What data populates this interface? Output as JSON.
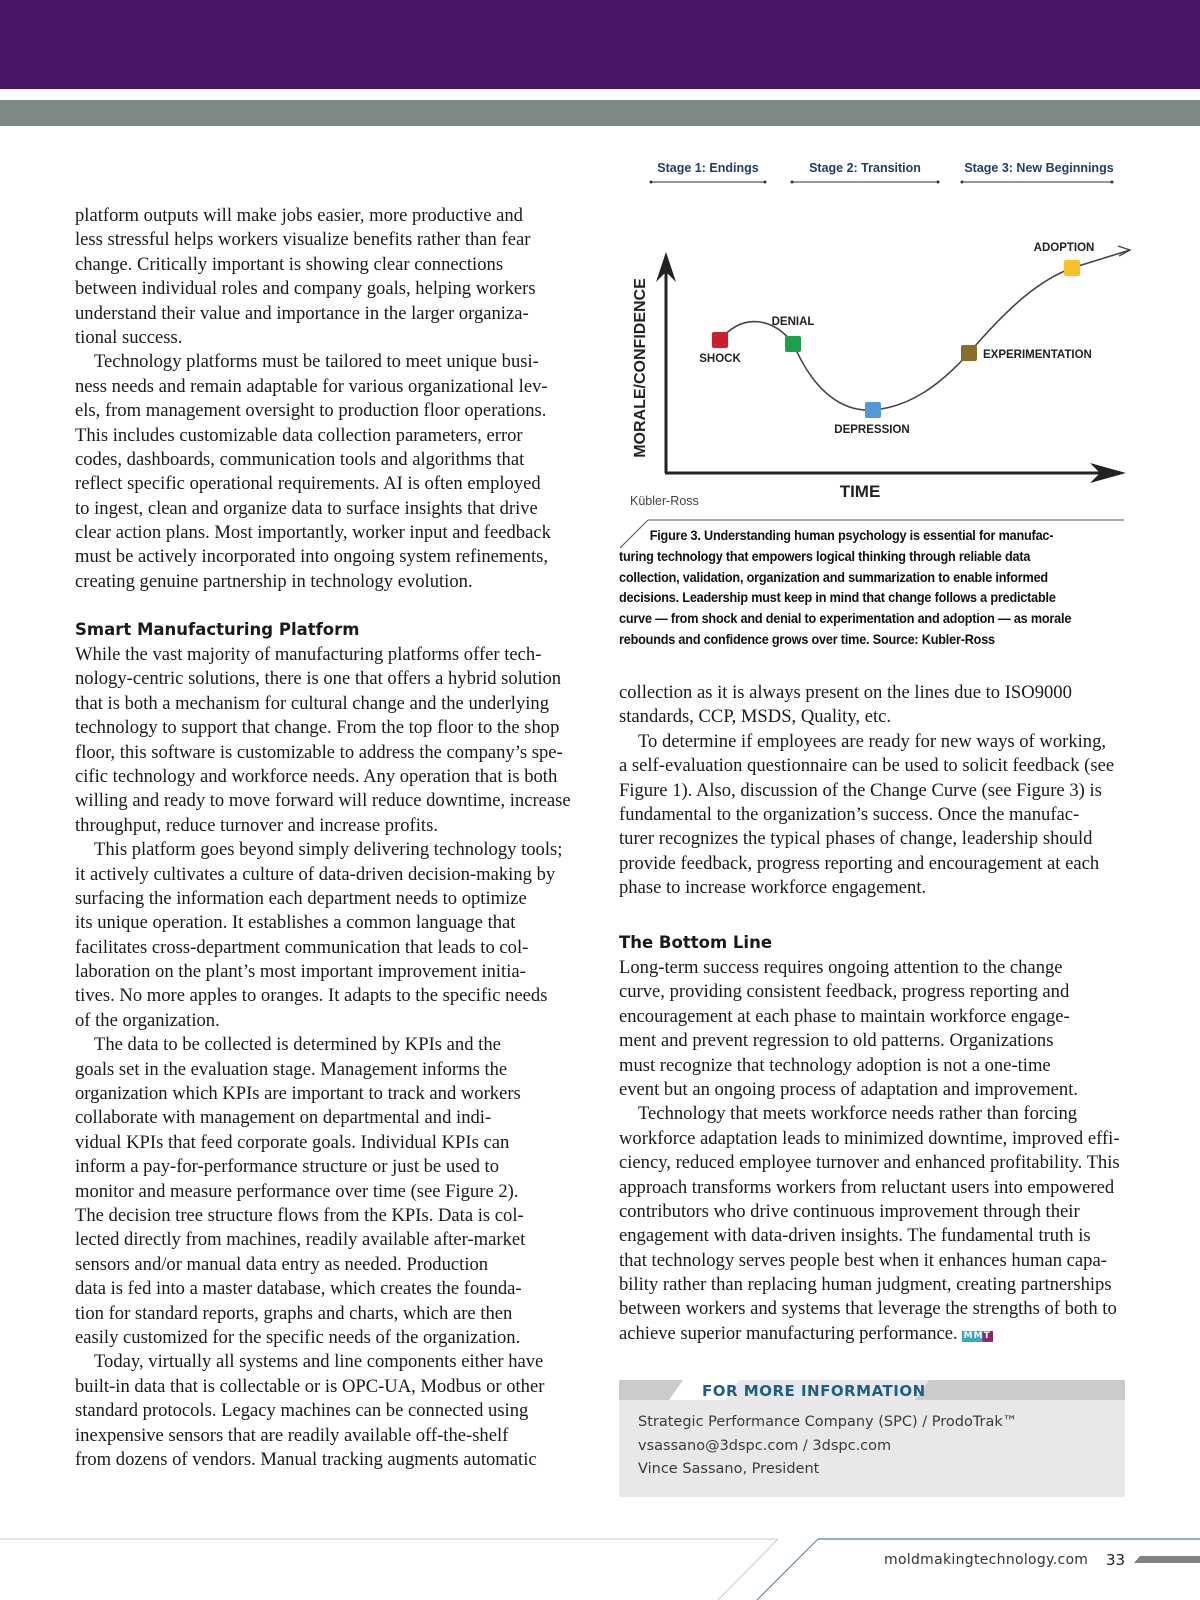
{
  "left_column": {
    "paragraphs": [
      {
        "indent": false,
        "lines": [
          "platform outputs will make jobs easier, more productive and",
          "less stressful helps workers visualize benefits rather than fear",
          "change. Critically important is showing clear connections",
          "between individual roles and company goals, helping workers",
          "understand their value and importance in the larger organiza-",
          "tional success."
        ]
      },
      {
        "indent": true,
        "lines": [
          "Technology platforms must be tailored to meet unique busi-",
          "ness needs and remain adaptable for various organizational lev-",
          "els, from management oversight to production floor operations.",
          "This includes customizable data collection parameters, error",
          "codes, dashboards, communication tools and algorithms that",
          "reflect specific operational requirements. AI is often employed",
          "to ingest, clean and organize data to surface insights that drive",
          "clear action plans. Most importantly, worker input and feedback",
          "must be actively incorporated into ongoing system refinements,",
          "creating genuine partnership in technology evolution."
        ]
      }
    ],
    "heading": "Smart Manufacturing Platform",
    "paragraphs_after_heading": [
      {
        "indent": false,
        "lines": [
          "While the vast majority of manufacturing platforms offer tech-",
          "nology-centric solutions, there is one that offers a hybrid solution",
          "that is both a mechanism for cultural change and the underlying",
          "technology to support that change. From the top floor to the shop",
          "floor, this software is customizable to address the company’s spe-",
          "cific technology and workforce needs. Any operation that is both",
          "willing and ready to move forward will reduce downtime, increase",
          "throughput, reduce turnover and increase profits."
        ]
      },
      {
        "indent": true,
        "lines": [
          "This platform goes beyond simply delivering technology tools;",
          "it actively cultivates a culture of data-driven decision-making by",
          "surfacing the information each department needs to optimize",
          "its unique operation. It establishes a common language that",
          "facilitates cross-department communication that leads to col-",
          "laboration on the plant’s most important improvement initia-",
          "tives. No more apples to oranges. It adapts to the specific needs",
          "of the organization."
        ]
      },
      {
        "indent": true,
        "lines": [
          "The data to be collected is determined by KPIs and the",
          "goals set in the evaluation stage. Management informs the",
          "organization which KPIs are important to track and workers",
          "collaborate with management on departmental and indi-",
          "vidual KPIs that feed corporate goals. Individual KPIs can",
          "inform a pay-for-performance structure or just be used to",
          "monitor and measure performance over time (see Figure 2).",
          "The decision tree structure flows from the KPIs. Data is col-",
          "lected directly from machines, readily available after-market",
          "sensors and/or manual data entry as needed. Production",
          "data is fed into a master database, which creates the founda-",
          "tion for standard reports, graphs and charts, which are then",
          "easily customized for the specific needs of the organization."
        ]
      },
      {
        "indent": true,
        "lines": [
          "Today, virtually all systems and line components either have",
          "built-in data that is collectable or is OPC-UA, Modbus or other",
          "standard protocols. Legacy machines can be connected using",
          "inexpensive sensors that are readily available off-the-shelf",
          "from dozens of vendors. Manual tracking augments automatic"
        ]
      }
    ]
  },
  "figure": {
    "stages": [
      "Stage 1: Endings",
      "Stage 2: Transition",
      "Stage 3: New Beginnings"
    ],
    "y_axis_label": "MORALE/CONFIDENCE",
    "x_axis_label": "TIME",
    "source_label": "Kübler-Ross",
    "phases": [
      {
        "label": "SHOCK",
        "color": "#c8202a"
      },
      {
        "label": "DENIAL",
        "color": "#1aa14a"
      },
      {
        "label": "DEPRESSION",
        "color": "#4f9bd9"
      },
      {
        "label": "EXPERIMENTATION",
        "color": "#8a6d2a"
      },
      {
        "label": "ADOPTION",
        "color": "#f6c02a"
      }
    ],
    "caption_lines": [
      "Figure 3. Understanding human psychology is essential for manufac-",
      "turing technology that empowers logical thinking through reliable data",
      "collection, validation, organization and summarization to enable informed",
      "decisions. Leadership must keep in mind that change follows a predictable",
      "curve — from shock and denial to experimentation and adoption — as morale",
      "rebounds and confidence grows over time. Source: Kubler-Ross"
    ]
  },
  "right_column": {
    "paragraphs": [
      {
        "indent": false,
        "lines": [
          "collection as it is always present on the lines due to ISO9000",
          "standards, CCP, MSDS, Quality, etc."
        ]
      },
      {
        "indent": true,
        "lines": [
          "To determine if employees are ready for new ways of working,",
          "a self-evaluation questionnaire can be used to solicit feedback (see",
          "Figure 1). Also, discussion of the Change Curve (see Figure 3) is",
          "fundamental to the organization’s success. Once the manufac-",
          "turer recognizes the typical phases of change, leadership should",
          "provide feedback, progress reporting and encouragement at each",
          "phase to increase workforce engagement."
        ]
      }
    ],
    "heading": "The Bottom Line",
    "paragraphs_after_heading": [
      {
        "indent": false,
        "lines": [
          "Long-term success requires ongoing attention to the change",
          "curve, providing consistent feedback, progress reporting and",
          "encouragement at each phase to maintain workforce engage-",
          "ment and prevent regression to old patterns. Organizations",
          "must recognize that technology adoption is not a one-time",
          "event but an ongoing process of adaptation and improvement."
        ]
      },
      {
        "indent": true,
        "lines": [
          "Technology that meets workforce needs rather than forcing",
          "workforce adaptation leads to minimized downtime, improved effi-",
          "ciency, reduced employee turnover and enhanced profitability. This",
          "approach transforms workers from reluctant users into empowered",
          "contributors who drive continuous improvement through their",
          "engagement with data-driven insights. The fundamental truth is",
          "that technology serves people best when it enhances human capa-",
          "bility rather than replacing human judgment, creating partnerships",
          "between workers and systems that leverage the strengths of both to",
          "achieve superior manufacturing performance."
        ]
      }
    ],
    "end_mark": "MMT"
  },
  "info_box": {
    "title": "FOR MORE INFORMATION",
    "lines": [
      "Strategic Performance Company (SPC) / ProdoTrak™",
      "vsassano@3dspc.com / 3dspc.com",
      "Vince Sassano, President"
    ]
  },
  "footer": {
    "url": "moldmakingtechnology.com",
    "page_number": "33"
  },
  "colors": {
    "header_band": "#4a1566",
    "gray_band": "#7e8a88",
    "info_title": "#1d5d8a",
    "stage_label": "#1f3d6b"
  }
}
